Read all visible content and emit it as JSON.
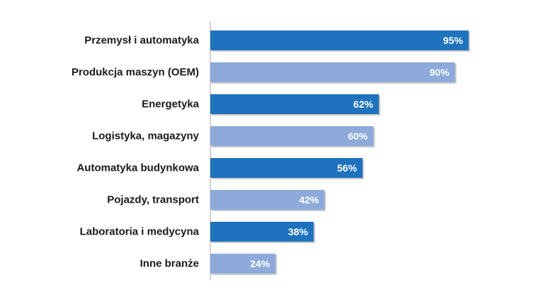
{
  "chart_data": {
    "type": "bar",
    "orientation": "horizontal",
    "categories": [
      "Przemysł i automatyka",
      "Produkcja maszyn (OEM)",
      "Energetyka",
      "Logistyka, magazyny",
      "Automatyka budynkowa",
      "Pojazdy, transport",
      "Laboratoria i medycyna",
      "Inne branże"
    ],
    "values": [
      95,
      90,
      62,
      60,
      56,
      42,
      38,
      24
    ],
    "value_labels": [
      "95%",
      "90%",
      "62%",
      "60%",
      "56%",
      "42%",
      "38%",
      "24%"
    ],
    "unit": "%",
    "xlim": [
      0,
      100
    ],
    "grid": false,
    "legend": "none",
    "colors": {
      "primary": "#1f73be",
      "secondary": "#8eaadb",
      "shadow": "#c9c9c9",
      "axis": "#a6a6a6"
    }
  }
}
